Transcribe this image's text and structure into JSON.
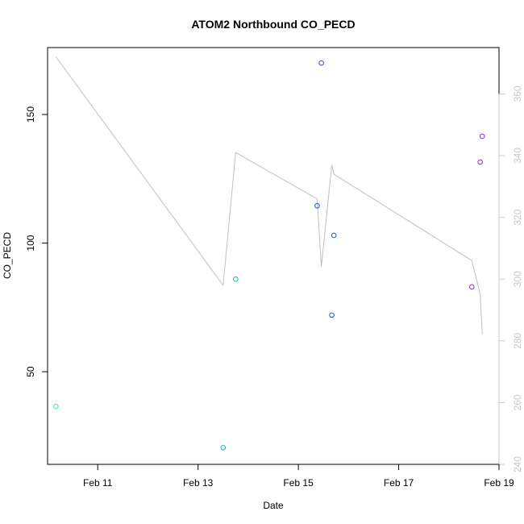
{
  "chart_data": {
    "type": "scatter",
    "title": "ATOM2 Northbound CO_PECD",
    "xlabel": "Date",
    "ylabel": "CO_PECD",
    "xlim": [
      "2024-02-10",
      "2024-02-19"
    ],
    "ylim": [
      14,
      176
    ],
    "y2lim": [
      240,
      375
    ],
    "grid": false,
    "legend": "none",
    "colors": {
      "frame": "#000000",
      "right_axis": "#c8c8c8",
      "line": "#c0c0c0"
    },
    "x_ticks": [
      {
        "value": "2024-02-11",
        "label": "Feb 11"
      },
      {
        "value": "2024-02-13",
        "label": "Feb 13"
      },
      {
        "value": "2024-02-15",
        "label": "Feb 15"
      },
      {
        "value": "2024-02-17",
        "label": "Feb 17"
      },
      {
        "value": "2024-02-19",
        "label": "Feb 19"
      }
    ],
    "y_ticks": [
      {
        "value": 50,
        "label": "50"
      },
      {
        "value": 100,
        "label": "100"
      },
      {
        "value": 150,
        "label": "150"
      }
    ],
    "y2_ticks": [
      {
        "value": 240,
        "label": "240"
      },
      {
        "value": 260,
        "label": "260"
      },
      {
        "value": 280,
        "label": "280"
      },
      {
        "value": 300,
        "label": "300"
      },
      {
        "value": 320,
        "label": "320"
      },
      {
        "value": 340,
        "label": "340"
      },
      {
        "value": 360,
        "label": "360"
      }
    ],
    "points": [
      {
        "x": "2024-02-10 04:00",
        "y": 36.5,
        "color": "#33e8a0"
      },
      {
        "x": "2024-02-13 12:00",
        "y": 20.5,
        "color": "#1ab0e0"
      },
      {
        "x": "2024-02-13 18:00",
        "y": 86,
        "color": "#1ab0e0"
      },
      {
        "x": "2024-02-15 09:00",
        "y": 114.5,
        "color": "#2050e0"
      },
      {
        "x": "2024-02-15 11:00",
        "y": 170,
        "color": "#2050e0"
      },
      {
        "x": "2024-02-15 16:00",
        "y": 72,
        "color": "#2050e0"
      },
      {
        "x": "2024-02-15 17:00",
        "y": 103,
        "color": "#2050e0"
      },
      {
        "x": "2024-02-18 11:00",
        "y": 83,
        "color": "#8a2be2"
      },
      {
        "x": "2024-02-18 15:00",
        "y": 131.5,
        "color": "#8a2be2"
      },
      {
        "x": "2024-02-18 16:00",
        "y": 141.5,
        "color": "#8a2be2"
      }
    ],
    "line_series": [
      {
        "x": "2024-02-10 04:00",
        "y": 372
      },
      {
        "x": "2024-02-13 12:00",
        "y": 298
      },
      {
        "x": "2024-02-13 18:00",
        "y": 341
      },
      {
        "x": "2024-02-15 09:00",
        "y": 326
      },
      {
        "x": "2024-02-15 11:00",
        "y": 304
      },
      {
        "x": "2024-02-15 16:00",
        "y": 337
      },
      {
        "x": "2024-02-15 17:00",
        "y": 334
      },
      {
        "x": "2024-02-18 11:00",
        "y": 306
      },
      {
        "x": "2024-02-18 15:00",
        "y": 295
      },
      {
        "x": "2024-02-18 16:00",
        "y": 282
      }
    ]
  }
}
